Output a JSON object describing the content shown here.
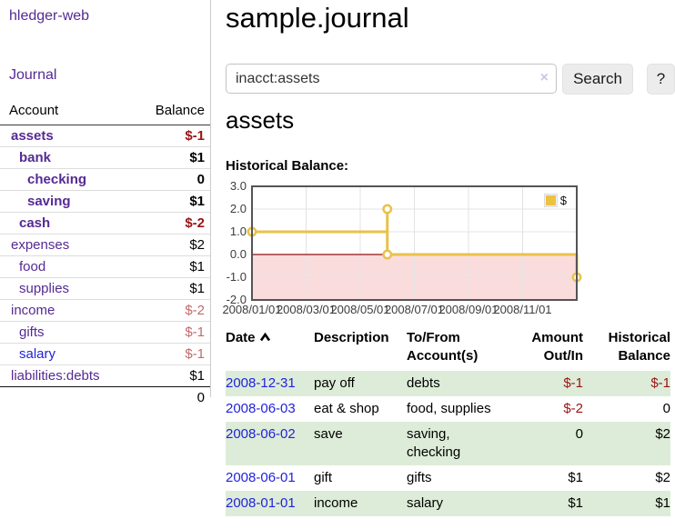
{
  "app": {
    "title": "hledger-web",
    "nav_journal": "Journal"
  },
  "sidebar": {
    "columns": {
      "account": "Account",
      "balance": "Balance"
    },
    "accounts": [
      {
        "name": "assets",
        "depth": 0,
        "balance": "$-1",
        "bold": true,
        "neg": "strong"
      },
      {
        "name": "bank",
        "depth": 1,
        "balance": "$1",
        "bold": true,
        "neg": "none"
      },
      {
        "name": "checking",
        "depth": 2,
        "balance": "0",
        "bold": true,
        "neg": "none"
      },
      {
        "name": "saving",
        "depth": 2,
        "balance": "$1",
        "bold": true,
        "neg": "none"
      },
      {
        "name": "cash",
        "depth": 1,
        "balance": "$-2",
        "bold": true,
        "neg": "strong"
      },
      {
        "name": "expenses",
        "depth": 0,
        "balance": "$2",
        "bold": false,
        "neg": "none"
      },
      {
        "name": "food",
        "depth": 1,
        "balance": "$1",
        "bold": false,
        "neg": "none"
      },
      {
        "name": "supplies",
        "depth": 1,
        "balance": "$1",
        "bold": false,
        "neg": "none"
      },
      {
        "name": "income",
        "depth": 0,
        "balance": "$-2",
        "bold": false,
        "neg": "muted"
      },
      {
        "name": "gifts",
        "depth": 1,
        "balance": "$-1",
        "bold": false,
        "neg": "muted"
      },
      {
        "name": "salary",
        "depth": 1,
        "balance": "$-1",
        "bold": false,
        "neg": "muted",
        "unvisited": true
      },
      {
        "name": "liabilities:debts",
        "depth": 0,
        "balance": "$1",
        "bold": false,
        "neg": "none"
      }
    ],
    "total": "0"
  },
  "header": {
    "title": "sample.journal"
  },
  "search": {
    "query": "inacct:assets",
    "clear_icon": "×",
    "search_button": "Search",
    "help_button": "?"
  },
  "account_page": {
    "heading": "assets",
    "chart_title": "Historical Balance:"
  },
  "chart_data": {
    "type": "line",
    "title": "Historical Balance",
    "legend": "$",
    "legend_position": "top-right",
    "grid": true,
    "ylim": [
      -2,
      3
    ],
    "xlim_months_from_2008_01_01": [
      0,
      12
    ],
    "y_tick_labels": [
      "3.0",
      "2.0",
      "1.0",
      "0.0",
      "-1.0",
      "-2.0"
    ],
    "y_tick_values": [
      3,
      2,
      1,
      0,
      -1,
      -2
    ],
    "x_tick_labels": [
      "2008/01/01",
      "2008/03/01",
      "2008/05/01",
      "2008/07/01",
      "2008/09/01",
      "2008/11/01"
    ],
    "x_tick_months": [
      0,
      2,
      4,
      6,
      8,
      10
    ],
    "series": [
      {
        "name": "$",
        "color": "#e8c24a",
        "line_points_month_value": [
          [
            0,
            1
          ],
          [
            5,
            1
          ],
          [
            5,
            2
          ],
          [
            5,
            0
          ],
          [
            12,
            0
          ],
          [
            12,
            -1
          ]
        ],
        "marker_points_month_value": [
          [
            0,
            1
          ],
          [
            5,
            2
          ],
          [
            5,
            0
          ],
          [
            12,
            -1
          ]
        ],
        "source_balances": {
          "2008-01-01": 1,
          "2008-06-01": 2,
          "2008-06-03": 0,
          "2008-12-31": -1
        }
      }
    ],
    "negative_region_color": "#fbdcdc",
    "zero_line_color": "#8f1010",
    "gridline_color": "#e3e3e3",
    "border_color": "#545454"
  },
  "register": {
    "columns": {
      "date": "Date",
      "description": "Description",
      "accounts": "To/From Account(s)",
      "amount": "Amount Out/In",
      "balance": "Historical Balance"
    },
    "sort_column": "date",
    "sort_direction": "ascending",
    "rows": [
      {
        "date": "2008-12-31",
        "description": "pay off",
        "accounts": "debts",
        "amount": "$-1",
        "balance": "$-1",
        "amount_neg": true,
        "balance_neg": true
      },
      {
        "date": "2008-06-03",
        "description": "eat & shop",
        "accounts": "food, supplies",
        "amount": "$-2",
        "balance": "0",
        "amount_neg": true,
        "balance_neg": false
      },
      {
        "date": "2008-06-02",
        "description": "save",
        "accounts": "saving, checking",
        "amount": "0",
        "balance": "$2",
        "amount_neg": false,
        "balance_neg": false
      },
      {
        "date": "2008-06-01",
        "description": "gift",
        "accounts": "gifts",
        "amount": "$1",
        "balance": "$2",
        "amount_neg": false,
        "balance_neg": false
      },
      {
        "date": "2008-01-01",
        "description": "income",
        "accounts": "salary",
        "amount": "$1",
        "balance": "$1",
        "amount_neg": false,
        "balance_neg": false
      }
    ]
  },
  "colors": {
    "link_visited_purple": "#552a94",
    "link_blue": "#2222dd",
    "negative_strong": "#991414",
    "negative_muted": "#c46a6a",
    "row_stripe_green": "#ddecd8",
    "chart_gold": "#e8c24a",
    "button_gray": "#ececec"
  }
}
